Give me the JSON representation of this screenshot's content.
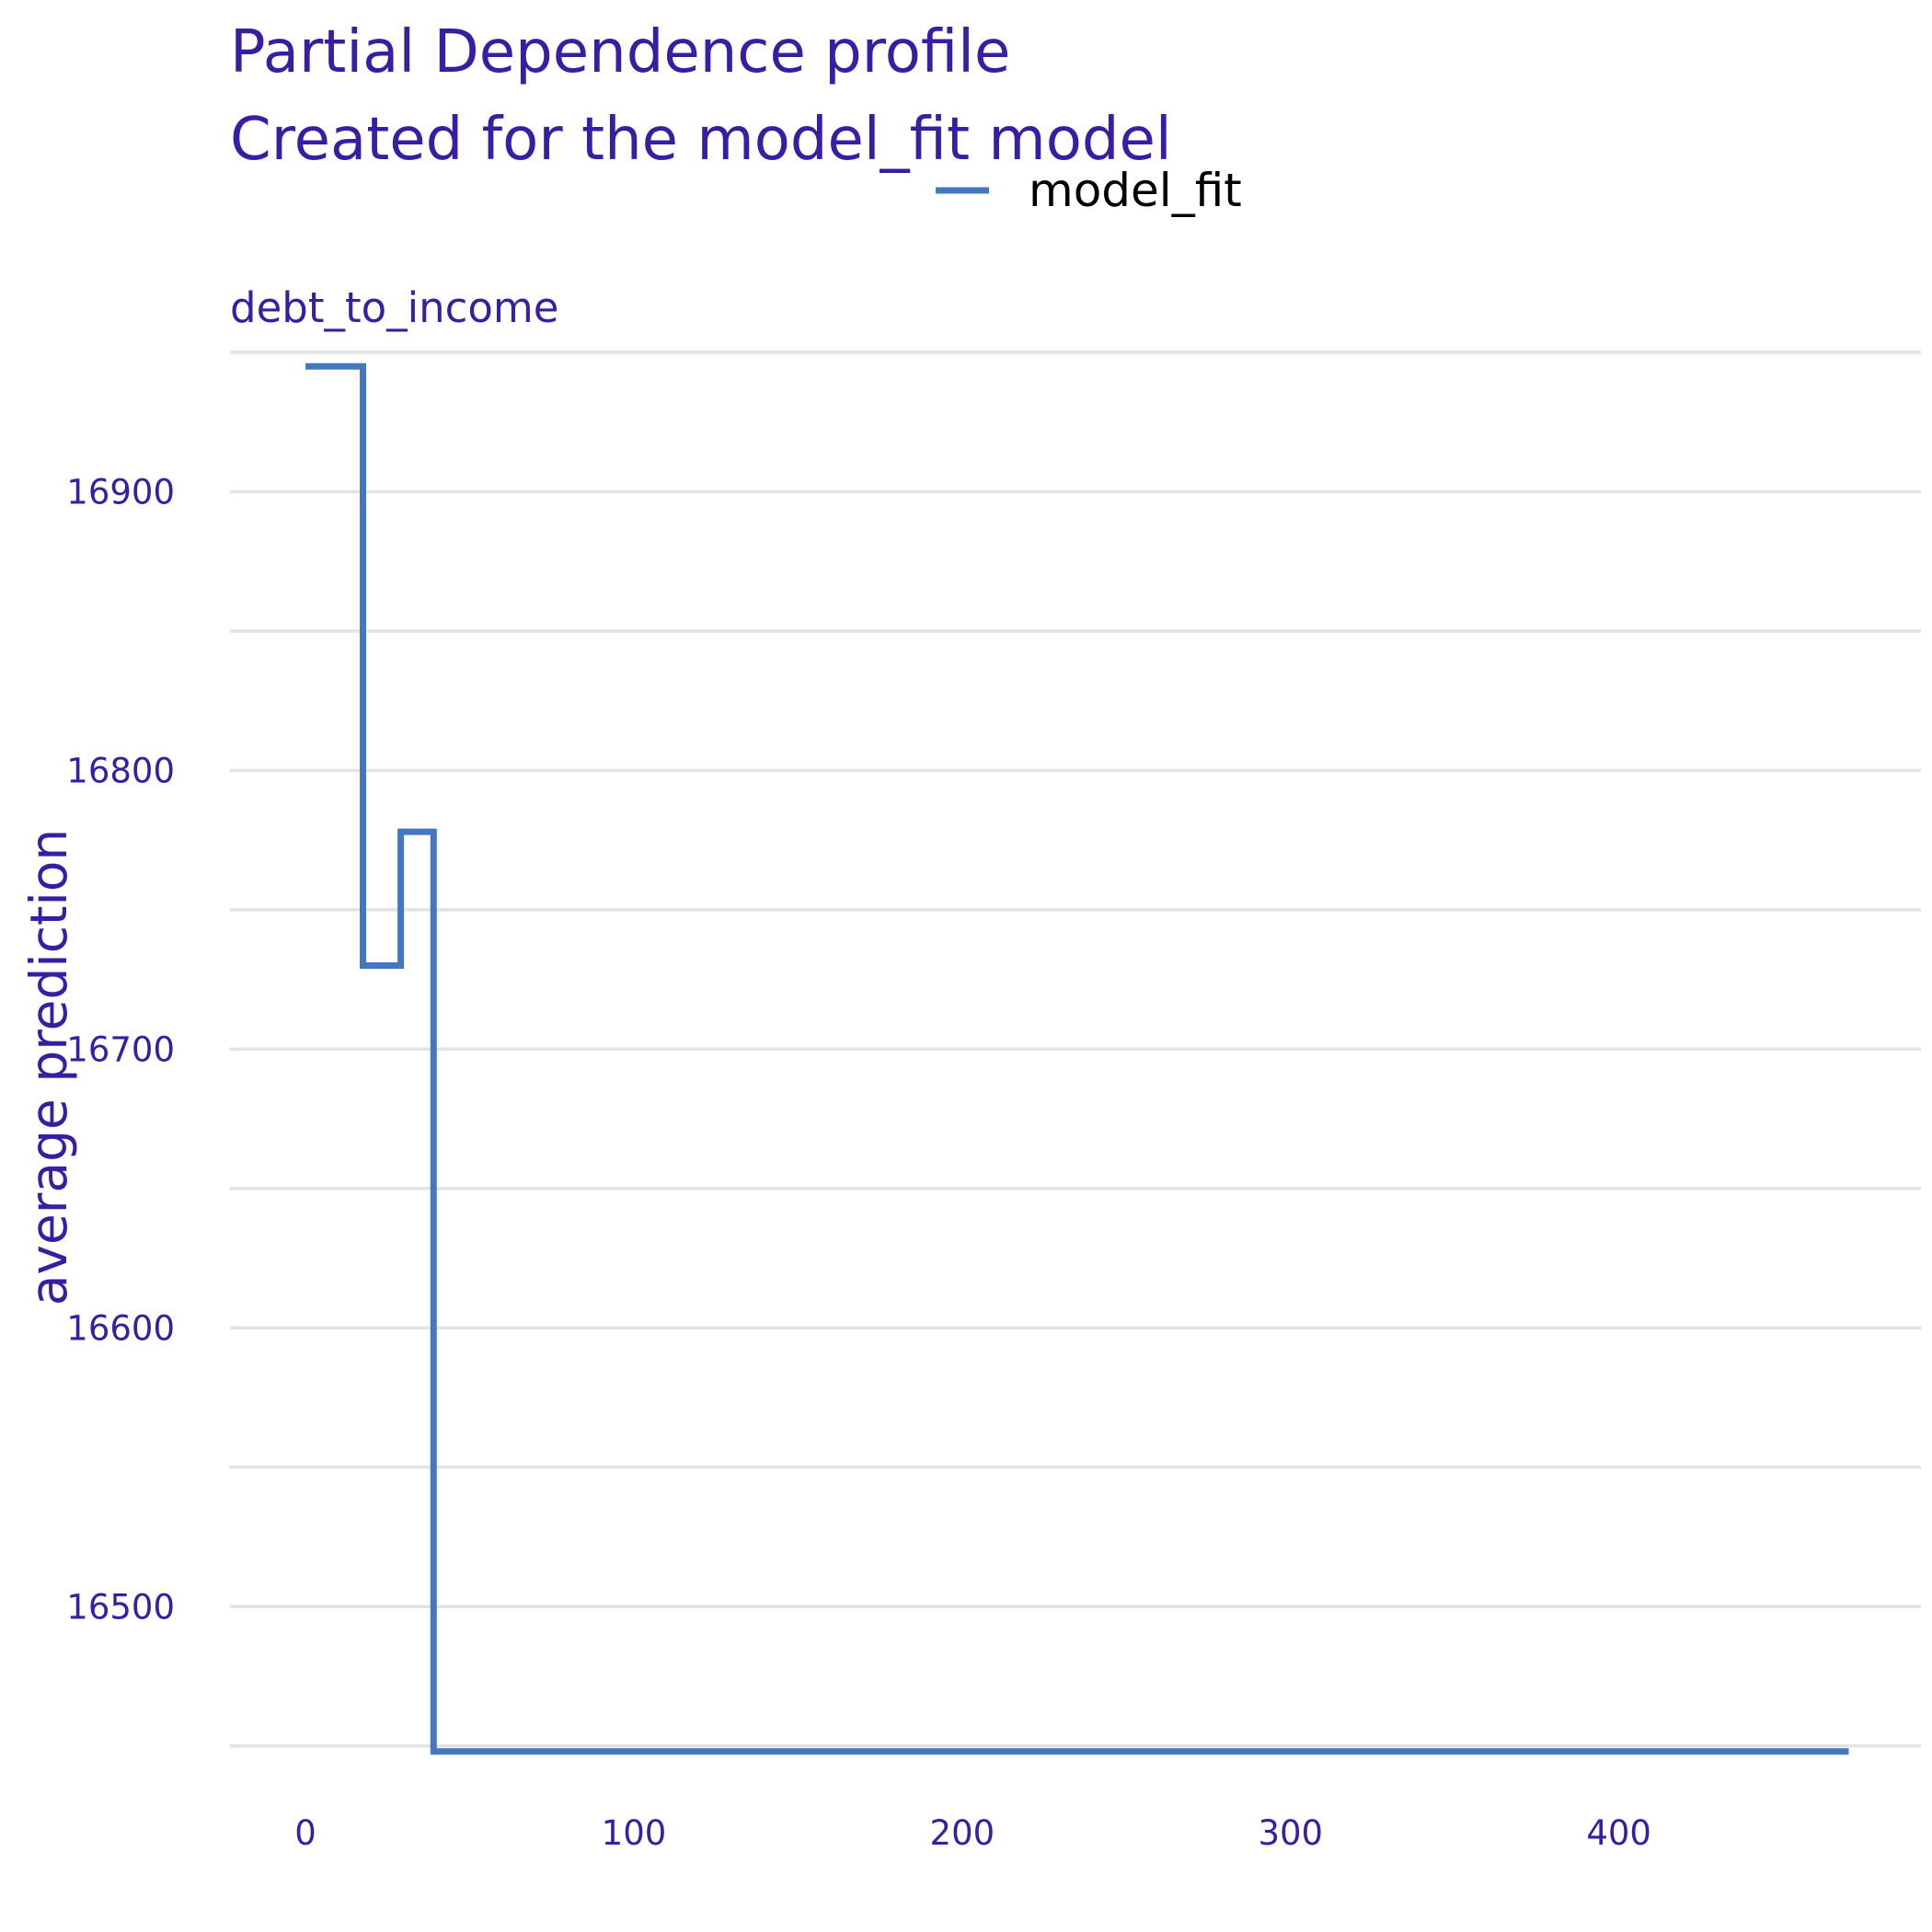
{
  "chart_data": {
    "type": "line",
    "title": "Partial Dependence profile",
    "subtitle": "Created for the model_fit model",
    "panel_label": "debt_to_income",
    "xlabel": "",
    "ylabel": "average prediction",
    "xlim": [
      -23,
      492
    ],
    "ylim": [
      16441,
      16951
    ],
    "x_ticks": [
      0,
      100,
      200,
      300,
      400
    ],
    "y_ticks": [
      16500,
      16600,
      16700,
      16800,
      16900
    ],
    "y_minor_gridlines": [
      16450,
      16550,
      16650,
      16750,
      16850,
      16950
    ],
    "grid": true,
    "legend_position": "top",
    "colors": {
      "text": "#371ea3",
      "line": "#4378bf",
      "grid": "#e3e3e3"
    },
    "series": [
      {
        "name": "model_fit",
        "step": "hv",
        "x": [
          0,
          17.5,
          29,
          36.5,
          39,
          470
        ],
        "y": [
          16945,
          16730,
          16778,
          16778,
          16448,
          16448
        ]
      }
    ]
  }
}
